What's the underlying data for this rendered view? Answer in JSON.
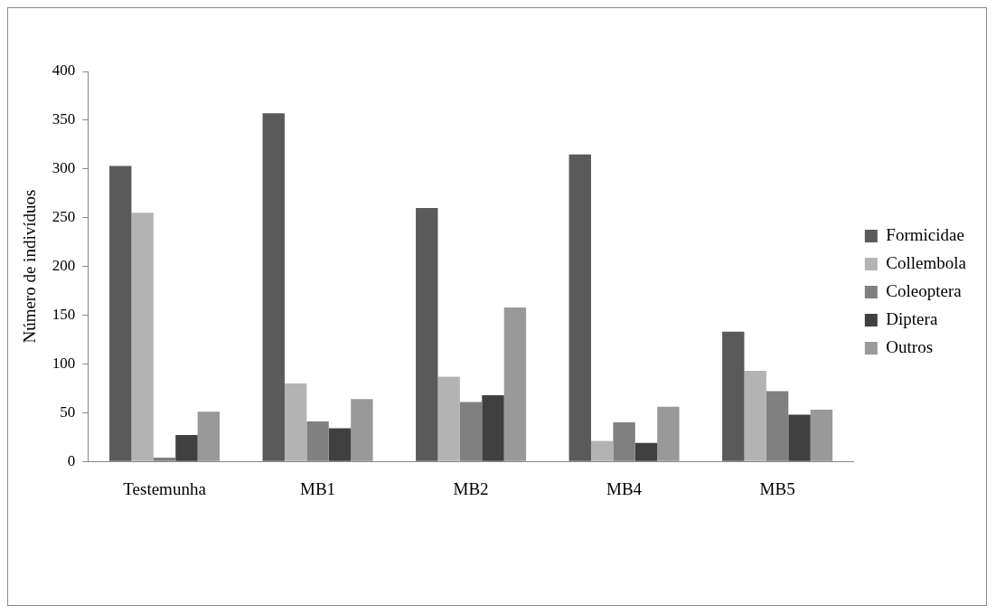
{
  "chart_data": {
    "type": "bar",
    "ylabel": "Número de indivíduos",
    "categories": [
      "Testemunha",
      "MB1",
      "MB2",
      "MB4",
      "MB5"
    ],
    "series": [
      {
        "name": "Formicidae",
        "color": "#5a5a5a",
        "values": [
          303,
          357,
          260,
          315,
          133
        ]
      },
      {
        "name": "Collembola",
        "color": "#b3b3b3",
        "values": [
          255,
          80,
          87,
          21,
          93
        ]
      },
      {
        "name": "Coleoptera",
        "color": "#808080",
        "values": [
          4,
          41,
          61,
          40,
          72
        ]
      },
      {
        "name": "Diptera",
        "color": "#404040",
        "values": [
          27,
          34,
          68,
          19,
          48
        ]
      },
      {
        "name": "Outros",
        "color": "#999999",
        "values": [
          51,
          64,
          158,
          56,
          53
        ]
      }
    ],
    "ylim": [
      0,
      400
    ],
    "yticks": [
      0,
      50,
      100,
      150,
      200,
      250,
      300,
      350,
      400
    ],
    "grid": false,
    "legend": "right"
  }
}
